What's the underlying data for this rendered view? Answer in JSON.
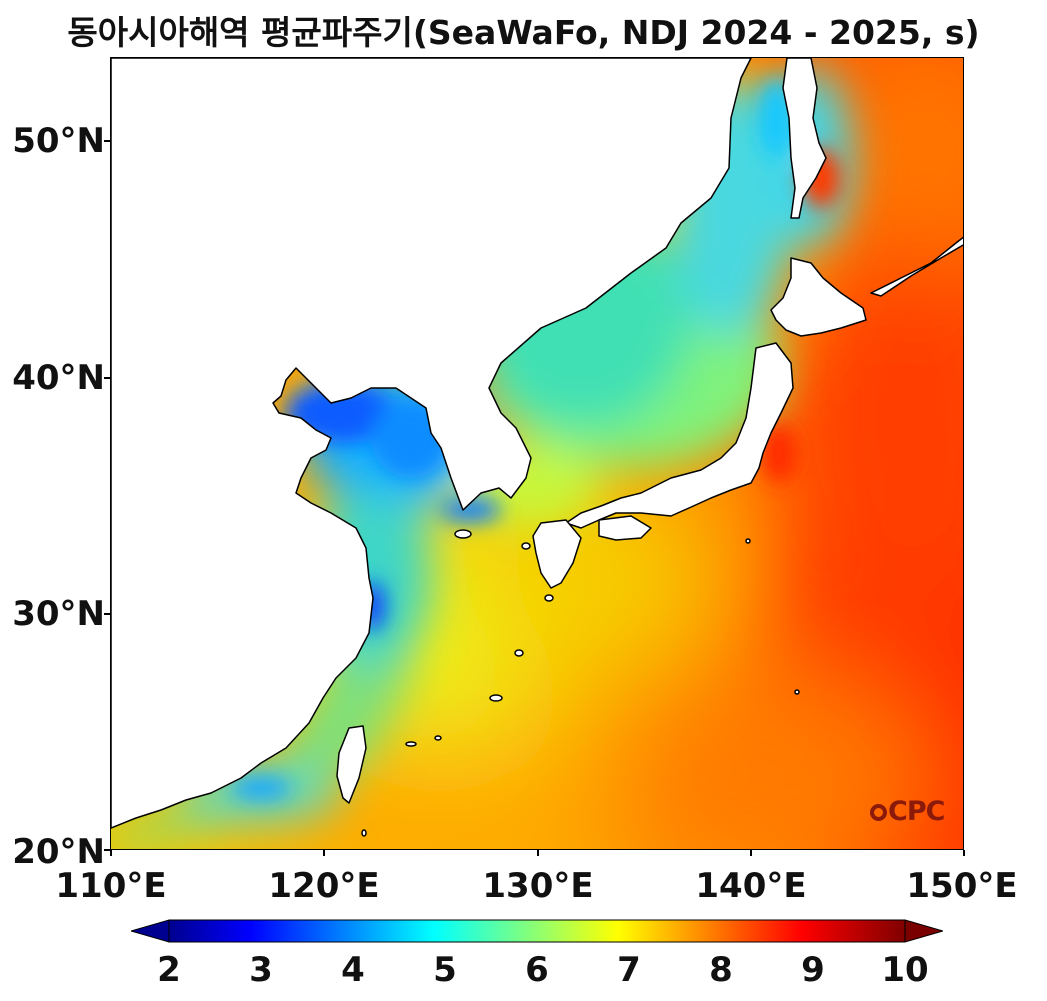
{
  "title": "동아시아해역 평균파주기(SeaWaFo, NDJ 2024 - 2025, s)",
  "map": {
    "lon_range": [
      110,
      150
    ],
    "lat_range": [
      20,
      53.5
    ],
    "lon_ticks": [
      "110°E",
      "120°E",
      "130°E",
      "140°E",
      "150°E"
    ],
    "lat_ticks": [
      "20°N",
      "30°N",
      "40°N",
      "50°N"
    ],
    "variable": "mean wave period",
    "unit": "s",
    "land_color": "#ffffff",
    "coastline_color": "#000000"
  },
  "colorbar": {
    "colormap": "jet",
    "min": 2,
    "max": 10,
    "extend": "both",
    "ticks": [
      "2",
      "3",
      "4",
      "5",
      "6",
      "7",
      "8",
      "9",
      "10"
    ]
  },
  "logo": {
    "text": "CPC"
  }
}
